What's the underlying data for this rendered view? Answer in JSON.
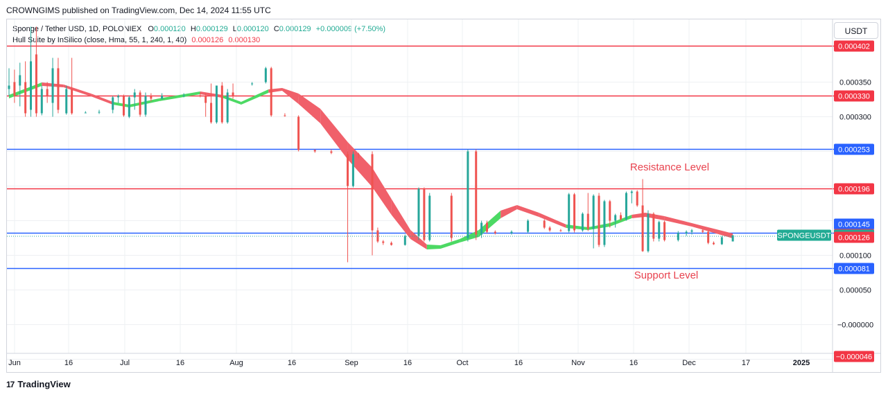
{
  "header": {
    "published": "CROWNGIMS published on TradingView.com, Dec 14, 2024 11:55 UTC"
  },
  "legend": {
    "symbol": "Sponge / Tether USD, 1D, POLONIEX",
    "o_label": "O",
    "o_value": "0.000120",
    "h_label": "H",
    "h_value": "0.000129",
    "l_label": "L",
    "l_value": "0.000120",
    "c_label": "C",
    "c_value": "0.000129",
    "change": "+0.000009 (+7.50%)",
    "indicator": "Hull Suite by InSilico (close, Hma, 55, 1, 240, 1, 40)",
    "ind_value1": "0.000126",
    "ind_value2": "0.000130"
  },
  "currency_button": "USDT",
  "brand": {
    "logo": "17",
    "name": "TradingView"
  },
  "colors": {
    "up": "#26a69a",
    "down": "#ef5350",
    "red_line": "#f23645",
    "blue_line": "#2962ff",
    "hull_green": "#4cd964",
    "hull_red": "#f0606a",
    "grid": "#eef0f3"
  },
  "annotations": {
    "resistance": "Resistance Level",
    "support": "Support Level"
  },
  "chart_data": {
    "type": "candlestick",
    "title": "Sponge / Tether USD, 1D, POLONIEX",
    "x_ticks": [
      "Jun",
      "16",
      "Jul",
      "16",
      "Aug",
      "16",
      "Sep",
      "16",
      "Oct",
      "16",
      "Nov",
      "16",
      "Dec",
      "17",
      "2025"
    ],
    "y_ticks": [
      "0.000350",
      "0.000300",
      "0.000100",
      "0.000050",
      "−0.000000"
    ],
    "ylim": [
      -6e-05,
      0.00043
    ],
    "grid": true,
    "horizontal_levels": [
      {
        "value": 0.00033,
        "label": "0.000330",
        "color": "#f23645"
      },
      {
        "value": 0.000402,
        "label": "0.000402",
        "color": "#f23645"
      },
      {
        "value": 0.000253,
        "label": "0.000253",
        "color": "#2962ff"
      },
      {
        "value": 0.000196,
        "label": "0.000196",
        "color": "#f23645"
      },
      {
        "value": 0.000132,
        "label": "",
        "color": "#2962ff"
      },
      {
        "value": 8.1e-05,
        "label": "0.000081",
        "color": "#2962ff"
      }
    ],
    "price_labels": [
      {
        "value": 0.000145,
        "label": "0.000145",
        "color": "#2962ff"
      },
      {
        "value": 0.00013,
        "label": "0.000130",
        "color": "#f23645"
      },
      {
        "value": 0.000129,
        "label": "0.000129",
        "color": "#22ab94",
        "tag": "SPONGEUSDT"
      },
      {
        "value": 0.000126,
        "label": "0.000126",
        "color": "#f23645"
      },
      {
        "value": -4.6e-05,
        "label": "−0.000046",
        "color": "#f23645"
      }
    ],
    "candles": [
      {
        "i": 0,
        "o": 0.00034,
        "h": 0.00037,
        "l": 0.00033,
        "c": 0.000345
      },
      {
        "i": 2,
        "o": 0.00035,
        "h": 0.000368,
        "l": 0.00032,
        "c": 0.00033
      },
      {
        "i": 4,
        "o": 0.000345,
        "h": 0.000378,
        "l": 0.000315,
        "c": 0.00036
      },
      {
        "i": 6,
        "o": 0.00035,
        "h": 0.00038,
        "l": 0.0003,
        "c": 0.000305
      },
      {
        "i": 8,
        "o": 0.00031,
        "h": 0.00043,
        "l": 0.0003,
        "c": 0.00038
      },
      {
        "i": 10,
        "o": 0.00039,
        "h": 0.00043,
        "l": 0.0003,
        "c": 0.000305
      },
      {
        "i": 12,
        "o": 0.000305,
        "h": 0.000345,
        "l": 0.000302,
        "c": 0.00034
      },
      {
        "i": 14,
        "o": 0.00034,
        "h": 0.00035,
        "l": 0.00032,
        "c": 0.00033
      },
      {
        "i": 16,
        "o": 0.00032,
        "h": 0.000385,
        "l": 0.0003,
        "c": 0.00037
      },
      {
        "i": 18,
        "o": 0.00037,
        "h": 0.000385,
        "l": 0.000305,
        "c": 0.00031
      },
      {
        "i": 21,
        "o": 0.000305,
        "h": 0.000345,
        "l": 0.000303,
        "c": 0.00034
      },
      {
        "i": 23,
        "o": 0.00034,
        "h": 0.000385,
        "l": 0.000303,
        "c": 0.000305
      },
      {
        "i": 28,
        "o": 0.000306,
        "h": 0.000308,
        "l": 0.000305,
        "c": 0.000306
      },
      {
        "i": 33,
        "o": 0.000306,
        "h": 0.00031,
        "l": 0.000304,
        "c": 0.000307
      },
      {
        "i": 38,
        "o": 0.00031,
        "h": 0.00033,
        "l": 0.000305,
        "c": 0.000328
      },
      {
        "i": 40,
        "o": 0.000328,
        "h": 0.000332,
        "l": 0.00032,
        "c": 0.00033
      },
      {
        "i": 42,
        "o": 0.00033,
        "h": 0.000332,
        "l": 0.0003,
        "c": 0.000302
      },
      {
        "i": 44,
        "o": 0.0003,
        "h": 0.00033,
        "l": 0.000298,
        "c": 0.000328
      },
      {
        "i": 46,
        "o": 0.000328,
        "h": 0.00034,
        "l": 0.00031,
        "c": 0.000335
      },
      {
        "i": 48,
        "o": 0.000335,
        "h": 0.000338,
        "l": 0.0003,
        "c": 0.000303
      },
      {
        "i": 50,
        "o": 0.000303,
        "h": 0.000335,
        "l": 0.0003,
        "c": 0.00033
      },
      {
        "i": 52,
        "o": 0.00033,
        "h": 0.000334,
        "l": 0.000322,
        "c": 0.000326
      },
      {
        "i": 56,
        "o": 0.000326,
        "h": 0.000334,
        "l": 0.000325,
        "c": 0.00033
      },
      {
        "i": 64,
        "o": 0.00033,
        "h": 0.000334,
        "l": 0.000328,
        "c": 0.000331
      },
      {
        "i": 70,
        "o": 0.000331,
        "h": 0.000335,
        "l": 0.000328,
        "c": 0.00033
      },
      {
        "i": 72,
        "o": 0.00033,
        "h": 0.000334,
        "l": 0.0003,
        "c": 0.00032
      },
      {
        "i": 74,
        "o": 0.00032,
        "h": 0.000348,
        "l": 0.00029,
        "c": 0.000292
      },
      {
        "i": 76,
        "o": 0.000292,
        "h": 0.000345,
        "l": 0.00029,
        "c": 0.000345
      },
      {
        "i": 78,
        "o": 0.000345,
        "h": 0.00035,
        "l": 0.00029,
        "c": 0.000292
      },
      {
        "i": 80,
        "o": 0.000292,
        "h": 0.00034,
        "l": 0.00029,
        "c": 0.000335
      },
      {
        "i": 82,
        "o": 0.000335,
        "h": 0.000348,
        "l": 0.000326,
        "c": 0.00033
      },
      {
        "i": 89,
        "o": 0.000348,
        "h": 0.00035,
        "l": 0.000345,
        "c": 0.000348
      },
      {
        "i": 94,
        "o": 0.00035,
        "h": 0.000372,
        "l": 0.000348,
        "c": 0.00037
      },
      {
        "i": 96,
        "o": 0.00037,
        "h": 0.000372,
        "l": 0.0003,
        "c": 0.000302
      },
      {
        "i": 101,
        "o": 0.000302,
        "h": 0.000305,
        "l": 0.0003,
        "c": 0.000301
      },
      {
        "i": 106,
        "o": 0.0003,
        "h": 0.000302,
        "l": 0.00025,
        "c": 0.000252
      },
      {
        "i": 112,
        "o": 0.000252,
        "h": 0.000253,
        "l": 0.000248,
        "c": 0.00025
      },
      {
        "i": 118,
        "o": 0.00025,
        "h": 0.000253,
        "l": 0.000246,
        "c": 0.000248
      },
      {
        "i": 124,
        "o": 0.000246,
        "h": 0.00025,
        "l": 9e-05,
        "c": 0.0002
      },
      {
        "i": 126,
        "o": 0.0002,
        "h": 0.00025,
        "l": 0.000198,
        "c": 0.000246
      },
      {
        "i": 128,
        "o": 0.000246,
        "h": 0.000248,
        "l": 0.00024,
        "c": 0.000245
      },
      {
        "i": 133,
        "o": 0.000246,
        "h": 0.00025,
        "l": 0.0001,
        "c": 0.000136
      },
      {
        "i": 135,
        "o": 0.000136,
        "h": 0.00014,
        "l": 0.000118,
        "c": 0.00012
      },
      {
        "i": 137,
        "o": 0.00012,
        "h": 0.000122,
        "l": 0.000115,
        "c": 0.000118
      },
      {
        "i": 140,
        "o": 0.000118,
        "h": 0.00012,
        "l": 0.000114,
        "c": 0.000115
      },
      {
        "i": 145,
        "o": 0.000115,
        "h": 0.00013,
        "l": 0.000114,
        "c": 0.000128
      },
      {
        "i": 150,
        "o": 0.000128,
        "h": 0.000198,
        "l": 0.000122,
        "c": 0.000196
      },
      {
        "i": 152,
        "o": 0.000196,
        "h": 0.000198,
        "l": 0.00012,
        "c": 0.000122
      },
      {
        "i": 154,
        "o": 0.000122,
        "h": 0.00019,
        "l": 0.00012,
        "c": 0.000186
      },
      {
        "i": 162,
        "o": 0.000186,
        "h": 0.00019,
        "l": 0.00012,
        "c": 0.000125
      },
      {
        "i": 168,
        "o": 0.000125,
        "h": 0.000253,
        "l": 0.00012,
        "c": 0.00025
      },
      {
        "i": 171,
        "o": 0.00025,
        "h": 0.000253,
        "l": 0.000122,
        "c": 0.00013
      },
      {
        "i": 173,
        "o": 0.00013,
        "h": 0.00015,
        "l": 0.000125,
        "c": 0.000147
      },
      {
        "i": 175,
        "o": 0.000147,
        "h": 0.00015,
        "l": 0.000132,
        "c": 0.000134
      },
      {
        "i": 178,
        "o": 0.000134,
        "h": 0.000136,
        "l": 0.00013,
        "c": 0.000132
      },
      {
        "i": 184,
        "o": 0.000132,
        "h": 0.000136,
        "l": 0.00013,
        "c": 0.000134
      },
      {
        "i": 190,
        "o": 0.000134,
        "h": 0.000152,
        "l": 0.000132,
        "c": 0.00015
      },
      {
        "i": 196,
        "o": 0.00015,
        "h": 0.000152,
        "l": 0.000138,
        "c": 0.00014
      },
      {
        "i": 198,
        "o": 0.00014,
        "h": 0.000142,
        "l": 0.000134,
        "c": 0.000136
      },
      {
        "i": 202,
        "o": 0.000136,
        "h": 0.000138,
        "l": 0.000134,
        "c": 0.000135
      },
      {
        "i": 205,
        "o": 0.000135,
        "h": 0.00019,
        "l": 0.000133,
        "c": 0.000188
      },
      {
        "i": 207,
        "o": 0.000188,
        "h": 0.00019,
        "l": 0.000133,
        "c": 0.000136
      },
      {
        "i": 210,
        "o": 0.000136,
        "h": 0.000162,
        "l": 0.000134,
        "c": 0.00016
      },
      {
        "i": 212,
        "o": 0.00016,
        "h": 0.00019,
        "l": 0.000135,
        "c": 0.000138
      },
      {
        "i": 214,
        "o": 0.000138,
        "h": 0.000188,
        "l": 0.00011,
        "c": 0.000186
      },
      {
        "i": 216,
        "o": 0.000186,
        "h": 0.00019,
        "l": 0.000112,
        "c": 0.000115
      },
      {
        "i": 218,
        "o": 0.000115,
        "h": 0.00018,
        "l": 0.000112,
        "c": 0.000178
      },
      {
        "i": 220,
        "o": 0.000178,
        "h": 0.00018,
        "l": 0.00014,
        "c": 0.00015
      },
      {
        "i": 222,
        "o": 0.00015,
        "h": 0.00016,
        "l": 0.00014,
        "c": 0.000158
      },
      {
        "i": 224,
        "o": 0.000158,
        "h": 0.000162,
        "l": 0.00015,
        "c": 0.000152
      },
      {
        "i": 226,
        "o": 0.000152,
        "h": 0.000192,
        "l": 0.00015,
        "c": 0.00019
      },
      {
        "i": 228,
        "o": 0.00019,
        "h": 0.000194,
        "l": 0.000175,
        "c": 0.000192
      },
      {
        "i": 230,
        "o": 0.000192,
        "h": 0.000194,
        "l": 0.00017,
        "c": 0.000172
      },
      {
        "i": 232,
        "o": 0.000172,
        "h": 0.00021,
        "l": 0.000105,
        "c": 0.000106
      },
      {
        "i": 234,
        "o": 0.000106,
        "h": 0.000165,
        "l": 0.000104,
        "c": 0.00016
      },
      {
        "i": 236,
        "o": 0.00016,
        "h": 0.000162,
        "l": 0.00012,
        "c": 0.000124
      },
      {
        "i": 238,
        "o": 0.000124,
        "h": 0.00015,
        "l": 0.00012,
        "c": 0.000148
      },
      {
        "i": 240,
        "o": 0.000148,
        "h": 0.00015,
        "l": 0.00012,
        "c": 0.000122
      },
      {
        "i": 245,
        "o": 0.000122,
        "h": 0.000135,
        "l": 0.00012,
        "c": 0.000132
      },
      {
        "i": 248,
        "o": 0.000132,
        "h": 0.000136,
        "l": 0.000128,
        "c": 0.000134
      },
      {
        "i": 250,
        "o": 0.000134,
        "h": 0.000138,
        "l": 0.00013,
        "c": 0.000136
      },
      {
        "i": 254,
        "o": 0.000136,
        "h": 0.000138,
        "l": 0.000132,
        "c": 0.000134
      },
      {
        "i": 256,
        "o": 0.000134,
        "h": 0.000136,
        "l": 0.000116,
        "c": 0.000118
      },
      {
        "i": 258,
        "o": 0.000118,
        "h": 0.00012,
        "l": 0.000115,
        "c": 0.000116
      },
      {
        "i": 261,
        "o": 0.000116,
        "h": 0.000128,
        "l": 0.000115,
        "c": 0.000126
      },
      {
        "i": 265,
        "o": 0.00012,
        "h": 0.000129,
        "l": 0.00012,
        "c": 0.000129
      }
    ],
    "hull": [
      {
        "i": 0,
        "a": 0.00033,
        "b": 0.000328,
        "trend": "up"
      },
      {
        "i": 12,
        "a": 0.000348,
        "b": 0.000346,
        "trend": "up"
      },
      {
        "i": 20,
        "a": 0.000345,
        "b": 0.000344,
        "trend": "down"
      },
      {
        "i": 30,
        "a": 0.000332,
        "b": 0.000331,
        "trend": "down"
      },
      {
        "i": 38,
        "a": 0.00032,
        "b": 0.000319,
        "trend": "down"
      },
      {
        "i": 44,
        "a": 0.000316,
        "b": 0.000315,
        "trend": "up"
      },
      {
        "i": 55,
        "a": 0.000325,
        "b": 0.000324,
        "trend": "up"
      },
      {
        "i": 70,
        "a": 0.000335,
        "b": 0.000334,
        "trend": "up"
      },
      {
        "i": 78,
        "a": 0.00033,
        "b": 0.000329,
        "trend": "down"
      },
      {
        "i": 85,
        "a": 0.00032,
        "b": 0.000319,
        "trend": "up"
      },
      {
        "i": 95,
        "a": 0.000338,
        "b": 0.000336,
        "trend": "up"
      },
      {
        "i": 100,
        "a": 0.00034,
        "b": 0.000339,
        "trend": "down"
      },
      {
        "i": 106,
        "a": 0.000332,
        "b": 0.00032,
        "trend": "down"
      },
      {
        "i": 114,
        "a": 0.00031,
        "b": 0.000292,
        "trend": "down"
      },
      {
        "i": 124,
        "a": 0.000262,
        "b": 0.00024,
        "trend": "down"
      },
      {
        "i": 133,
        "a": 0.000225,
        "b": 0.0002,
        "trend": "down"
      },
      {
        "i": 140,
        "a": 0.00018,
        "b": 0.00016,
        "trend": "down"
      },
      {
        "i": 147,
        "a": 0.000135,
        "b": 0.000125,
        "trend": "down"
      },
      {
        "i": 153,
        "a": 0.000114,
        "b": 0.00011,
        "trend": "down"
      },
      {
        "i": 158,
        "a": 0.000113,
        "b": 0.000111,
        "trend": "up"
      },
      {
        "i": 165,
        "a": 0.000122,
        "b": 0.00012,
        "trend": "up"
      },
      {
        "i": 172,
        "a": 0.000135,
        "b": 0.000128,
        "trend": "up"
      },
      {
        "i": 180,
        "a": 0.000163,
        "b": 0.000155,
        "trend": "up"
      },
      {
        "i": 186,
        "a": 0.000171,
        "b": 0.000168,
        "trend": "down"
      },
      {
        "i": 194,
        "a": 0.00016,
        "b": 0.000157,
        "trend": "down"
      },
      {
        "i": 204,
        "a": 0.000143,
        "b": 0.000141,
        "trend": "down"
      },
      {
        "i": 212,
        "a": 0.000139,
        "b": 0.000138,
        "trend": "up"
      },
      {
        "i": 220,
        "a": 0.000145,
        "b": 0.000143,
        "trend": "up"
      },
      {
        "i": 228,
        "a": 0.000157,
        "b": 0.000155,
        "trend": "up"
      },
      {
        "i": 233,
        "a": 0.00016,
        "b": 0.000157,
        "trend": "down"
      },
      {
        "i": 240,
        "a": 0.000155,
        "b": 0.000152,
        "trend": "down"
      },
      {
        "i": 250,
        "a": 0.000145,
        "b": 0.000143,
        "trend": "down"
      },
      {
        "i": 258,
        "a": 0.000137,
        "b": 0.000134,
        "trend": "down"
      },
      {
        "i": 265,
        "a": 0.00013,
        "b": 0.000126,
        "trend": "down"
      }
    ]
  }
}
